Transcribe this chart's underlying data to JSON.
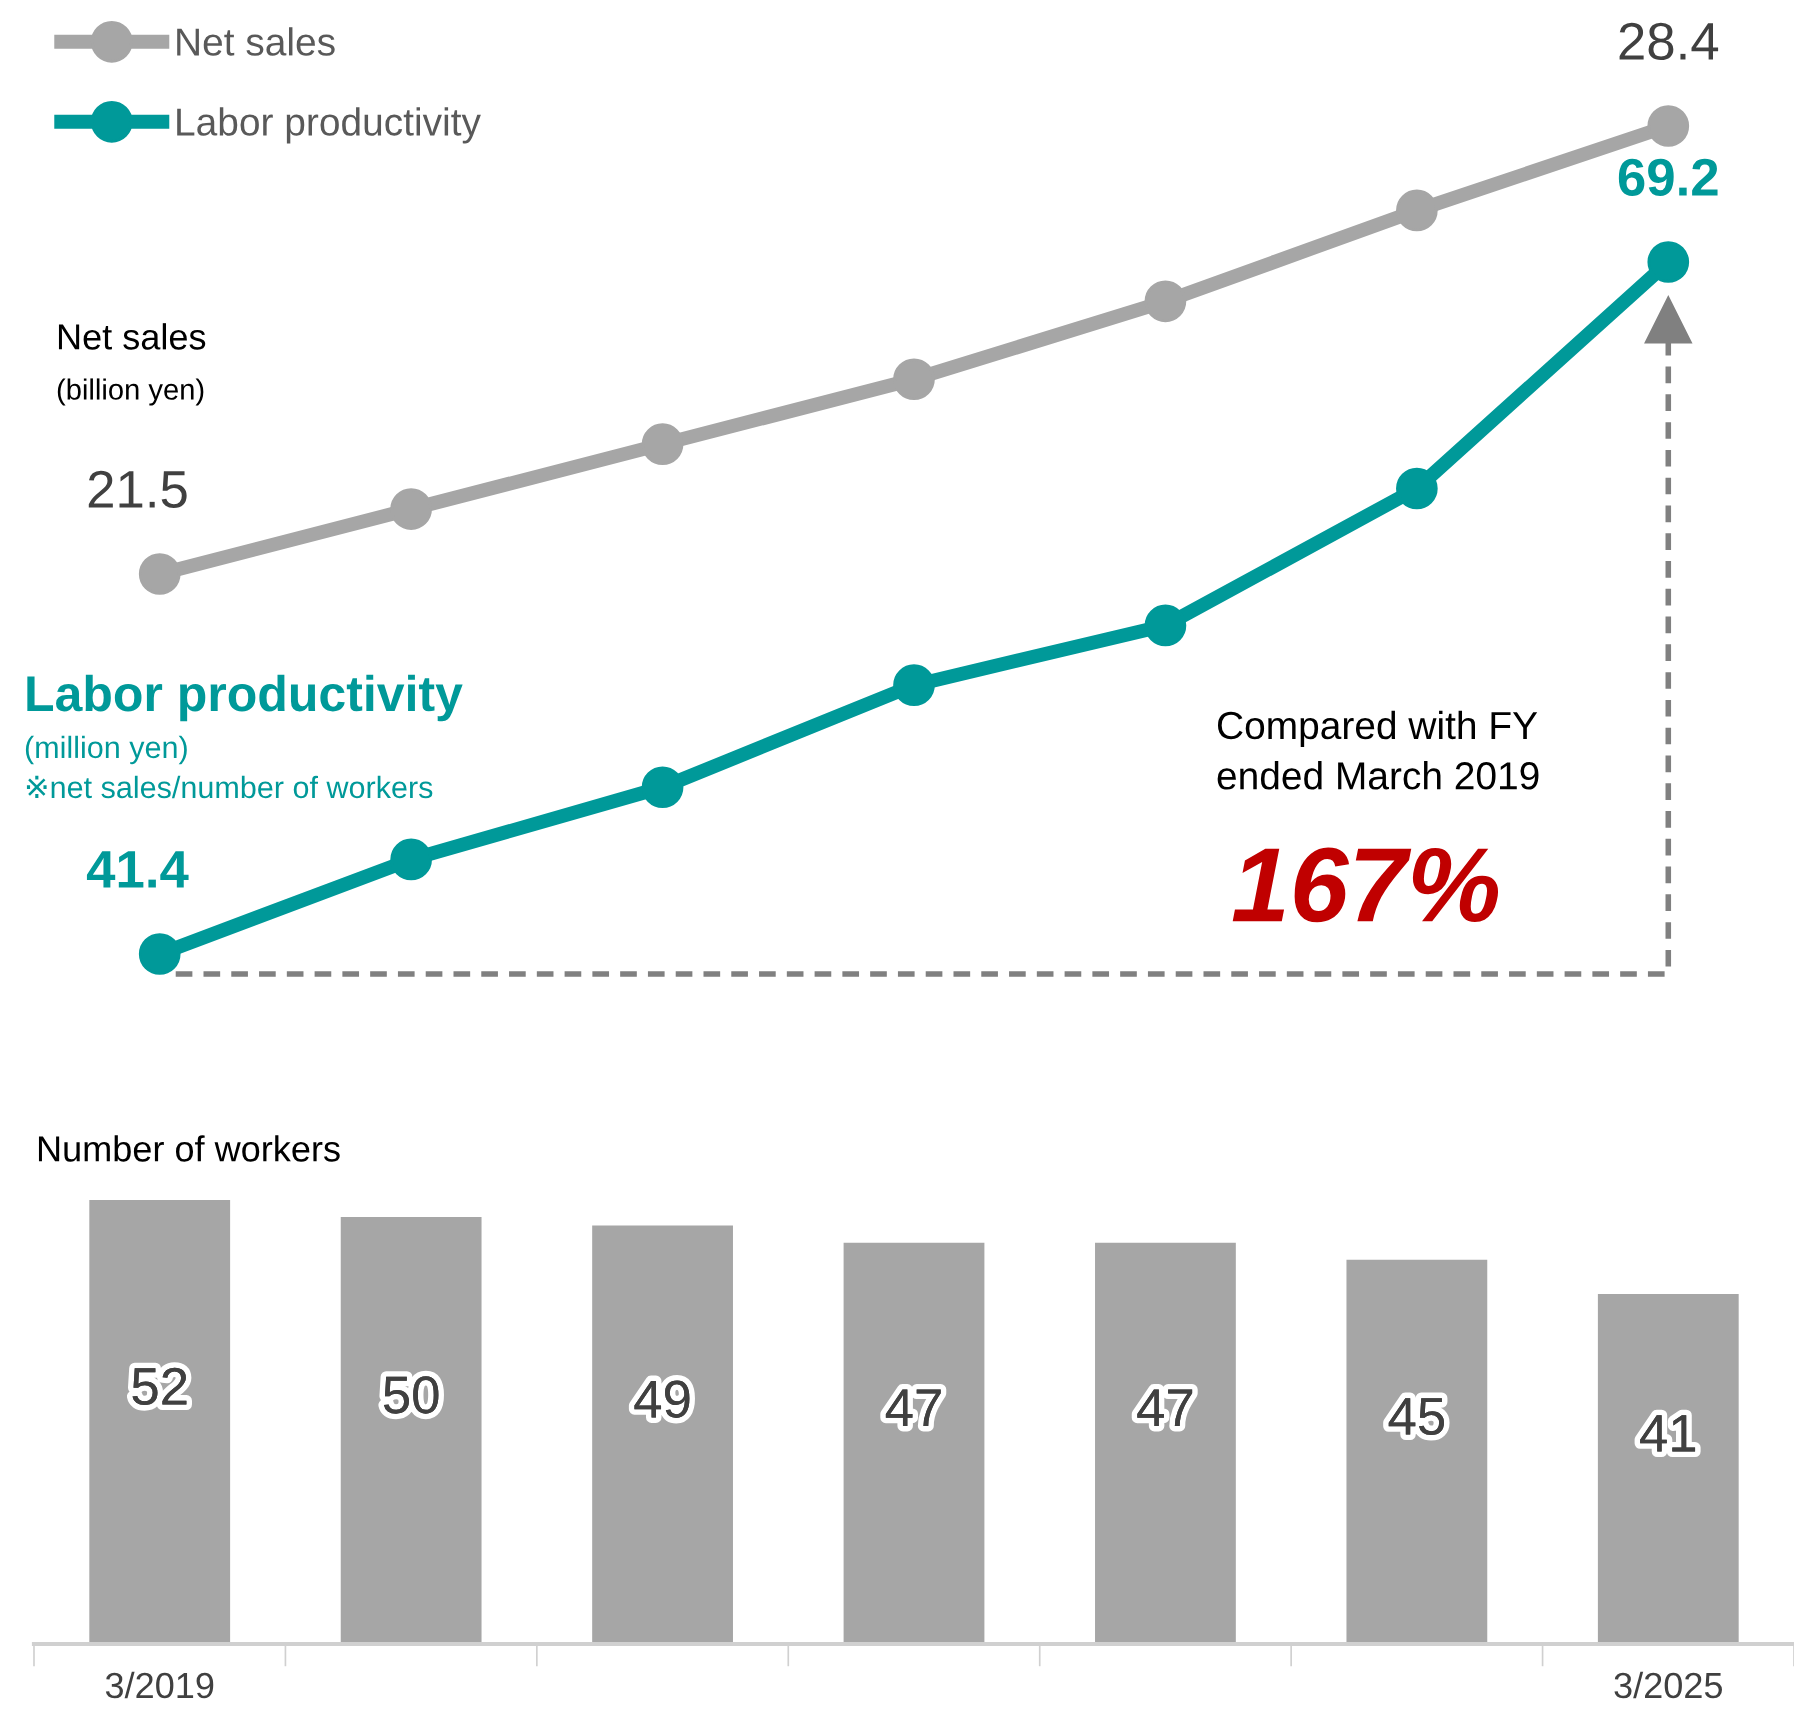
{
  "chart_data": [
    {
      "type": "line",
      "categories": [
        null,
        null,
        null,
        null,
        null,
        null,
        null
      ],
      "tick_labels": false,
      "legend": "top left",
      "marker": "circle",
      "ylabel": "Net sales\n(billion yen)",
      "series": [
        {
          "name": "Net sales",
          "color": "#a6a6a6",
          "values": [
            21.5,
            22.5,
            23.5,
            24.5,
            25.7,
            27.1,
            28.4
          ],
          "value_labels": [
            "21.5",
            null,
            null,
            null,
            null,
            null,
            "28.4"
          ]
        }
      ]
    },
    {
      "type": "line",
      "categories": [
        null,
        null,
        null,
        null,
        null,
        null,
        null
      ],
      "tick_labels": false,
      "legend": "top left",
      "marker": "circle",
      "ylabel": "Labor productivity\n(million yen)\n※net sales/number of workers",
      "series": [
        {
          "name": "Labor productivity",
          "color": "#009999",
          "values": [
            41.4,
            45.2,
            48.1,
            52.2,
            54.6,
            60.1,
            69.2
          ],
          "value_labels": [
            "41.4",
            null,
            null,
            null,
            null,
            null,
            "69.2"
          ]
        }
      ],
      "annotations": [
        "Compared with FY\nended March 2019",
        "167%"
      ]
    },
    {
      "type": "bar",
      "title": "Number of workers",
      "categories": [
        "3/2019",
        null,
        null,
        null,
        null,
        null,
        "3/2025"
      ],
      "values": [
        52,
        50,
        49,
        47,
        47,
        45,
        41
      ],
      "color": "#a6a6a6",
      "data_labels": true,
      "tick_labels": "x"
    }
  ]
}
